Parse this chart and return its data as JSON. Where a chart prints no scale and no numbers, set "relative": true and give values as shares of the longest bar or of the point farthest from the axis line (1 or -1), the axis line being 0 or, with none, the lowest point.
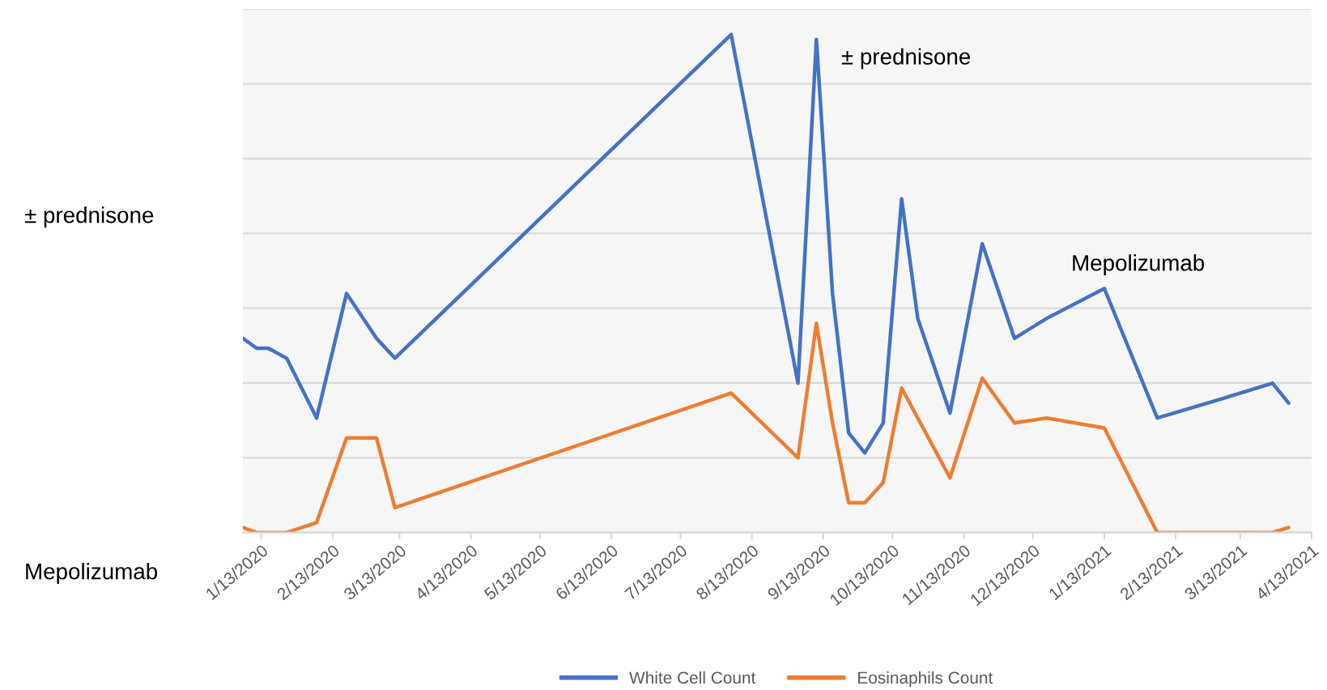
{
  "chart_data": {
    "type": "line",
    "relative": true,
    "x": [
      "2020-01-05",
      "2020-01-11",
      "2020-01-16",
      "2020-01-24",
      "2020-02-06",
      "2020-02-19",
      "2020-03-03",
      "2020-03-11",
      "2020-08-04",
      "2020-09-02",
      "2020-09-10",
      "2020-09-17",
      "2020-09-24",
      "2020-10-01",
      "2020-10-09",
      "2020-10-17",
      "2020-10-24",
      "2020-11-07",
      "2020-11-21",
      "2020-12-05",
      "2020-12-19",
      "2021-01-13",
      "2021-02-05",
      "2021-03-06",
      "2021-03-27",
      "2021-04-03"
    ],
    "series": [
      {
        "name": "White Cell Count",
        "color": "#4472c4",
        "values": [
          0.39,
          0.37,
          0.37,
          0.35,
          0.23,
          0.48,
          0.39,
          0.35,
          1.0,
          0.3,
          0.99,
          0.48,
          0.2,
          0.16,
          0.22,
          0.67,
          0.43,
          0.24,
          0.58,
          0.39,
          0.43,
          0.49,
          0.23,
          0.27,
          0.3,
          0.26
        ]
      },
      {
        "name": "Eosinaphils Count",
        "color": "#ed7d31",
        "values": [
          0.01,
          0,
          0,
          0,
          0.02,
          0.19,
          0.19,
          0.05,
          0.28,
          0.15,
          0.42,
          0.22,
          0.06,
          0.06,
          0.1,
          0.29,
          0.23,
          0.11,
          0.31,
          0.22,
          0.23,
          0.21,
          0,
          0,
          0,
          0.01
        ]
      }
    ],
    "xlim": [
      "2020-01-05",
      "2021-04-13"
    ],
    "xticks": [
      {
        "value": "2020-01-13",
        "label": "1/13/2020"
      },
      {
        "value": "2020-02-13",
        "label": "2/13/2020"
      },
      {
        "value": "2020-03-13",
        "label": "3/13/2020"
      },
      {
        "value": "2020-04-13",
        "label": "4/13/2020"
      },
      {
        "value": "2020-05-13",
        "label": "5/13/2020"
      },
      {
        "value": "2020-06-13",
        "label": "6/13/2020"
      },
      {
        "value": "2020-07-13",
        "label": "7/13/2020"
      },
      {
        "value": "2020-08-13",
        "label": "8/13/2020"
      },
      {
        "value": "2020-09-13",
        "label": "9/13/2020"
      },
      {
        "value": "2020-10-13",
        "label": "10/13/2020"
      },
      {
        "value": "2020-11-13",
        "label": "11/13/2020"
      },
      {
        "value": "2020-12-13",
        "label": "12/13/2020"
      },
      {
        "value": "2021-01-13",
        "label": "1/13/2021"
      },
      {
        "value": "2021-02-13",
        "label": "2/13/2021"
      },
      {
        "value": "2021-03-13",
        "label": "3/13/2021"
      },
      {
        "value": "2021-04-13",
        "label": "4/13/2021"
      }
    ],
    "grid": "y",
    "legend": "bottom",
    "line_style": "solid",
    "tick_labels": "x",
    "annotations": [
      "± prednisone",
      "Mepolizumab",
      {
        "text": "± prednisone",
        "x": "2020-09-10",
        "y": 0.99
      },
      {
        "text": "Mepolizumab",
        "x": "2021-01-13",
        "y": 0.49
      }
    ]
  }
}
